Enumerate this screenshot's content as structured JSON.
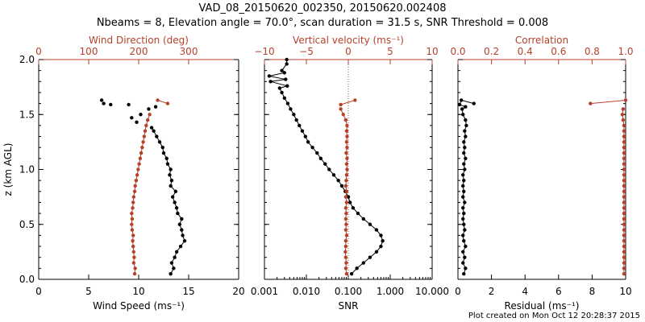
{
  "title": {
    "line1": "VAD_08_20150620_002350, 20150620.002408",
    "line2": "Nbeams = 8, Elevation angle = 70.0°, scan duration = 31.5 s, SNR Threshold = 0.008"
  },
  "footer": "Plot created on Mon Oct 12 20:28:37 2015",
  "colors": {
    "primary": "#000000",
    "secondary": "#b5412a"
  },
  "chart_data": [
    {
      "type": "scatter",
      "ylabel": "z (km AGL)",
      "ylim": [
        0,
        2.0
      ],
      "yticks": [
        "0.0",
        "0.5",
        "1.0",
        "1.5",
        "2.0"
      ],
      "bottom_axis": {
        "label": "Wind Speed (ms⁻¹)",
        "range": [
          0,
          20
        ],
        "ticks": [
          "0",
          "5",
          "10",
          "15",
          "20"
        ]
      },
      "top_axis": {
        "label": "Wind Direction (deg)",
        "range": [
          0,
          400
        ],
        "ticks": [
          "0",
          "100",
          "200",
          "300"
        ]
      },
      "series": [
        {
          "axis": "bottom",
          "color": "#000000",
          "style": "line-markers",
          "points": [
            [
              13.2,
              0.05
            ],
            [
              13.5,
              0.1
            ],
            [
              13.3,
              0.15
            ],
            [
              13.6,
              0.2
            ],
            [
              13.8,
              0.25
            ],
            [
              14.2,
              0.3
            ],
            [
              14.6,
              0.35
            ],
            [
              14.4,
              0.4
            ],
            [
              14.3,
              0.45
            ],
            [
              14.1,
              0.5
            ],
            [
              14.3,
              0.55
            ],
            [
              13.9,
              0.6
            ],
            [
              13.8,
              0.65
            ],
            [
              13.6,
              0.7
            ],
            [
              13.4,
              0.75
            ],
            [
              13.7,
              0.8
            ],
            [
              13.2,
              0.85
            ],
            [
              13.3,
              0.9
            ],
            [
              13.1,
              0.95
            ],
            [
              13.2,
              1.0
            ],
            [
              12.9,
              1.05
            ],
            [
              12.8,
              1.1
            ],
            [
              12.5,
              1.15
            ],
            [
              12.4,
              1.2
            ],
            [
              12.1,
              1.25
            ],
            [
              11.8,
              1.3
            ],
            [
              11.5,
              1.35
            ],
            [
              11.3,
              1.38
            ]
          ]
        },
        {
          "axis": "bottom",
          "color": "#000000",
          "style": "markers",
          "points": [
            [
              9.8,
              1.43
            ],
            [
              9.3,
              1.47
            ],
            [
              10.2,
              1.5
            ],
            [
              11.0,
              1.55
            ],
            [
              11.7,
              1.57
            ],
            [
              9.0,
              1.59
            ],
            [
              7.2,
              1.59
            ],
            [
              6.3,
              1.63
            ],
            [
              6.5,
              1.6
            ]
          ]
        },
        {
          "axis": "top",
          "color": "#b5412a",
          "style": "line-markers",
          "points": [
            [
              192,
              0.05
            ],
            [
              193,
              0.1
            ],
            [
              190,
              0.15
            ],
            [
              191,
              0.2
            ],
            [
              190,
              0.25
            ],
            [
              189,
              0.3
            ],
            [
              188,
              0.35
            ],
            [
              189,
              0.4
            ],
            [
              187,
              0.45
            ],
            [
              186,
              0.5
            ],
            [
              187,
              0.55
            ],
            [
              186,
              0.6
            ],
            [
              188,
              0.65
            ],
            [
              189,
              0.7
            ],
            [
              190,
              0.75
            ],
            [
              192,
              0.8
            ],
            [
              193,
              0.85
            ],
            [
              195,
              0.9
            ],
            [
              197,
              0.95
            ],
            [
              199,
              1.0
            ],
            [
              201,
              1.05
            ],
            [
              203,
              1.1
            ],
            [
              205,
              1.15
            ],
            [
              207,
              1.2
            ],
            [
              209,
              1.25
            ],
            [
              211,
              1.3
            ],
            [
              213,
              1.35
            ],
            [
              215,
              1.4
            ],
            [
              218,
              1.45
            ],
            [
              222,
              1.5
            ]
          ]
        },
        {
          "axis": "top",
          "color": "#b5412a",
          "style": "line-markers",
          "points": [
            [
              238,
              1.63
            ],
            [
              258,
              1.6
            ]
          ]
        }
      ]
    },
    {
      "type": "line",
      "ylim": [
        0,
        2.0
      ],
      "bottom_axis": {
        "label": "SNR",
        "scale": "log",
        "range": [
          0.001,
          10
        ],
        "ticks": [
          "0.001",
          "0.010",
          "0.100",
          "1.000",
          "10.000"
        ]
      },
      "top_axis": {
        "label": "Vertical velocity (ms⁻¹)",
        "range": [
          -10,
          10
        ],
        "ticks": [
          "−10",
          "−5",
          "0",
          "5",
          "10"
        ]
      },
      "reference_line": {
        "axis": "top",
        "value": 0,
        "style": "dotted",
        "color": "#b5412a"
      },
      "series": [
        {
          "axis": "bottom",
          "color": "#000000",
          "style": "line-markers",
          "points": [
            [
              0.12,
              0.05
            ],
            [
              0.16,
              0.1
            ],
            [
              0.23,
              0.15
            ],
            [
              0.33,
              0.2
            ],
            [
              0.47,
              0.25
            ],
            [
              0.6,
              0.3
            ],
            [
              0.66,
              0.35
            ],
            [
              0.6,
              0.4
            ],
            [
              0.47,
              0.45
            ],
            [
              0.33,
              0.5
            ],
            [
              0.23,
              0.55
            ],
            [
              0.17,
              0.6
            ],
            [
              0.13,
              0.65
            ],
            [
              0.11,
              0.7
            ],
            [
              0.1,
              0.75
            ],
            [
              0.085,
              0.8
            ],
            [
              0.07,
              0.85
            ],
            [
              0.058,
              0.9
            ],
            [
              0.045,
              0.95
            ],
            [
              0.035,
              1.0
            ],
            [
              0.028,
              1.05
            ],
            [
              0.022,
              1.1
            ],
            [
              0.018,
              1.15
            ],
            [
              0.014,
              1.2
            ],
            [
              0.011,
              1.25
            ],
            [
              0.0095,
              1.3
            ],
            [
              0.008,
              1.35
            ],
            [
              0.0068,
              1.4
            ],
            [
              0.0058,
              1.45
            ],
            [
              0.005,
              1.5
            ],
            [
              0.0042,
              1.55
            ],
            [
              0.0036,
              1.6
            ],
            [
              0.003,
              1.65
            ],
            [
              0.0026,
              1.7
            ],
            [
              0.0023,
              1.74
            ],
            [
              0.0035,
              1.76
            ],
            [
              0.0014,
              1.8
            ],
            [
              0.0032,
              1.82
            ],
            [
              0.0013,
              1.85
            ],
            [
              0.003,
              1.88
            ],
            [
              0.0026,
              1.9
            ],
            [
              0.0034,
              1.96
            ],
            [
              0.0034,
              2.0
            ]
          ]
        },
        {
          "axis": "top",
          "color": "#b5412a",
          "style": "line-markers",
          "points": [
            [
              -0.2,
              0.05
            ],
            [
              -0.3,
              0.1
            ],
            [
              -0.25,
              0.15
            ],
            [
              -0.3,
              0.2
            ],
            [
              -0.35,
              0.25
            ],
            [
              -0.3,
              0.3
            ],
            [
              -0.3,
              0.35
            ],
            [
              -0.2,
              0.4
            ],
            [
              -0.3,
              0.45
            ],
            [
              -0.25,
              0.5
            ],
            [
              -0.3,
              0.55
            ],
            [
              -0.25,
              0.6
            ],
            [
              -0.3,
              0.65
            ],
            [
              -0.2,
              0.7
            ],
            [
              -0.3,
              0.75
            ],
            [
              -0.2,
              0.8
            ],
            [
              -0.3,
              0.85
            ],
            [
              -0.25,
              0.9
            ],
            [
              -0.2,
              0.95
            ],
            [
              -0.15,
              1.0
            ],
            [
              -0.2,
              1.05
            ],
            [
              -0.15,
              1.1
            ],
            [
              -0.25,
              1.15
            ],
            [
              -0.15,
              1.2
            ],
            [
              -0.2,
              1.25
            ],
            [
              -0.15,
              1.3
            ],
            [
              -0.2,
              1.35
            ],
            [
              -0.15,
              1.4
            ],
            [
              -0.3,
              1.45
            ],
            [
              -0.6,
              1.5
            ],
            [
              -0.9,
              1.55
            ]
          ]
        },
        {
          "axis": "top",
          "color": "#b5412a",
          "style": "line-markers",
          "points": [
            [
              -0.9,
              1.59
            ],
            [
              0.8,
              1.63
            ]
          ]
        }
      ]
    },
    {
      "type": "line",
      "ylim": [
        0,
        2.0
      ],
      "bottom_axis": {
        "label": "Residual (ms⁻¹)",
        "range": [
          0,
          10
        ],
        "ticks": [
          "0",
          "2",
          "4",
          "6",
          "8",
          "10"
        ]
      },
      "top_axis": {
        "label": "Correlation",
        "range": [
          0,
          1
        ],
        "ticks": [
          "0.0",
          "0.2",
          "0.4",
          "0.6",
          "0.8",
          "1.0"
        ]
      },
      "series": [
        {
          "axis": "bottom",
          "color": "#000000",
          "style": "line-markers",
          "points": [
            [
              0.35,
              0.05
            ],
            [
              0.45,
              0.1
            ],
            [
              0.3,
              0.15
            ],
            [
              0.4,
              0.2
            ],
            [
              0.3,
              0.25
            ],
            [
              0.45,
              0.3
            ],
            [
              0.35,
              0.35
            ],
            [
              0.3,
              0.4
            ],
            [
              0.4,
              0.45
            ],
            [
              0.35,
              0.5
            ],
            [
              0.3,
              0.55
            ],
            [
              0.35,
              0.6
            ],
            [
              0.3,
              0.65
            ],
            [
              0.4,
              0.7
            ],
            [
              0.3,
              0.75
            ],
            [
              0.35,
              0.8
            ],
            [
              0.3,
              0.85
            ],
            [
              0.35,
              0.9
            ],
            [
              0.3,
              0.95
            ],
            [
              0.4,
              1.0
            ],
            [
              0.35,
              1.05
            ],
            [
              0.45,
              1.1
            ],
            [
              0.35,
              1.15
            ],
            [
              0.4,
              1.2
            ],
            [
              0.35,
              1.25
            ],
            [
              0.45,
              1.3
            ],
            [
              0.4,
              1.35
            ],
            [
              0.5,
              1.4
            ],
            [
              0.45,
              1.45
            ],
            [
              0.3,
              1.5
            ],
            [
              0.25,
              1.55
            ],
            [
              0.45,
              1.57
            ],
            [
              0.1,
              1.59
            ],
            [
              0.2,
              1.63
            ],
            [
              0.95,
              1.6
            ]
          ]
        },
        {
          "axis": "top",
          "color": "#b5412a",
          "style": "line-markers",
          "points": [
            [
              0.99,
              0.05
            ],
            [
              0.99,
              0.1
            ],
            [
              0.99,
              0.15
            ],
            [
              0.99,
              0.2
            ],
            [
              0.99,
              0.25
            ],
            [
              0.99,
              0.3
            ],
            [
              0.99,
              0.35
            ],
            [
              0.99,
              0.4
            ],
            [
              0.99,
              0.45
            ],
            [
              0.99,
              0.5
            ],
            [
              0.99,
              0.55
            ],
            [
              0.99,
              0.6
            ],
            [
              0.99,
              0.65
            ],
            [
              0.99,
              0.7
            ],
            [
              0.99,
              0.75
            ],
            [
              0.99,
              0.8
            ],
            [
              0.99,
              0.85
            ],
            [
              0.99,
              0.9
            ],
            [
              0.99,
              0.95
            ],
            [
              0.99,
              1.0
            ],
            [
              0.99,
              1.05
            ],
            [
              0.99,
              1.1
            ],
            [
              0.99,
              1.15
            ],
            [
              0.99,
              1.2
            ],
            [
              0.99,
              1.25
            ],
            [
              0.99,
              1.3
            ],
            [
              0.99,
              1.35
            ],
            [
              0.99,
              1.4
            ],
            [
              0.985,
              1.45
            ],
            [
              0.98,
              1.5
            ],
            [
              0.985,
              1.55
            ]
          ]
        },
        {
          "axis": "top",
          "color": "#b5412a",
          "style": "line-markers",
          "points": [
            [
              0.79,
              1.6
            ],
            [
              1.0,
              1.63
            ]
          ]
        }
      ]
    }
  ]
}
